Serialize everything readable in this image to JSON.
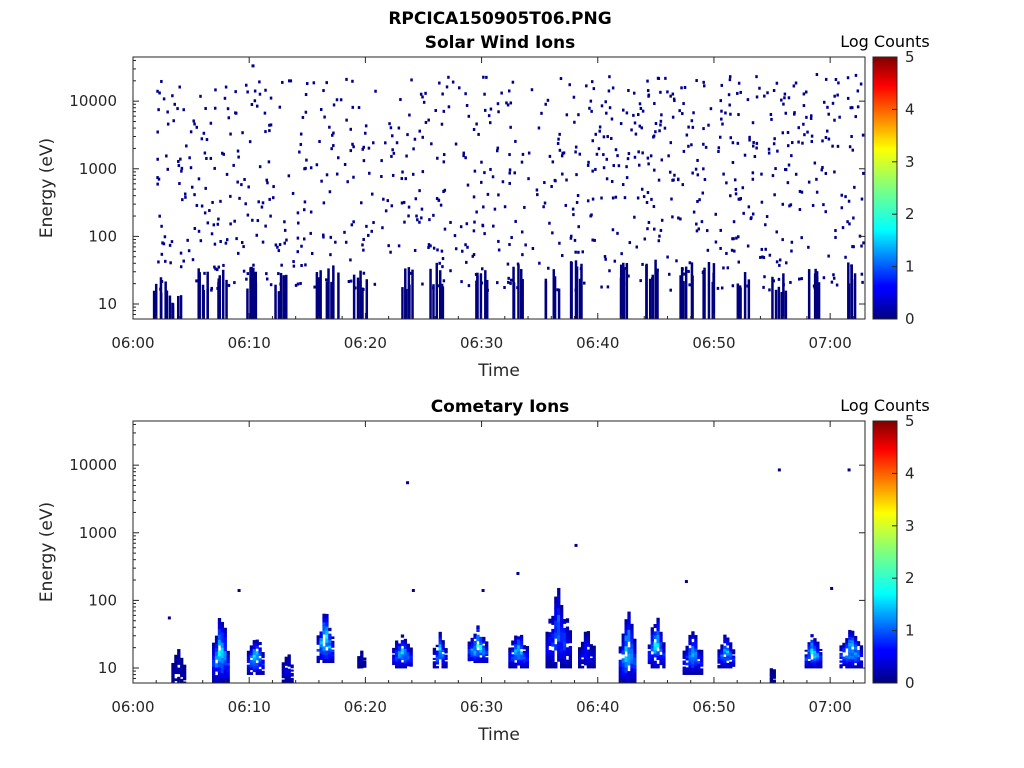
{
  "figure_title": "RPCICA150905T06.PNG",
  "chart_data": [
    {
      "type": "heatmap",
      "title": "Solar Wind Ions",
      "xlabel": "Time",
      "ylabel": "Energy (eV)",
      "x_ticks": [
        "06:00",
        "06:10",
        "06:20",
        "06:30",
        "06:40",
        "06:50",
        "07:00"
      ],
      "x_range_minutes": [
        0,
        63
      ],
      "y_scale": "log",
      "y_ticks": [
        "10",
        "100",
        "1000",
        "10000"
      ],
      "y_range": [
        6,
        45000
      ],
      "colorbar": {
        "title": "Log Counts",
        "ticks": [
          "0",
          "1",
          "2",
          "3",
          "4",
          "5"
        ],
        "range": [
          0,
          5
        ],
        "colormap": "jet"
      },
      "description": "sparse scatter of pixels at log count ~0 (dark blue) across 06:02–07:03 and 10–30000 eV, with denser clusters below 40 eV",
      "low_energy_bursts": [
        {
          "t": 2.3,
          "e_top": 25
        },
        {
          "t": 3.5,
          "e_top": 12
        },
        {
          "t": 6.0,
          "e_top": 30
        },
        {
          "t": 7.5,
          "e_top": 30
        },
        {
          "t": 10.0,
          "e_top": 30
        },
        {
          "t": 12.5,
          "e_top": 28
        },
        {
          "t": 16.3,
          "e_top": 40
        },
        {
          "t": 17.0,
          "e_top": 35
        },
        {
          "t": 19.5,
          "e_top": 30
        },
        {
          "t": 23.5,
          "e_top": 30
        },
        {
          "t": 26.0,
          "e_top": 35
        },
        {
          "t": 30.0,
          "e_top": 40
        },
        {
          "t": 33.0,
          "e_top": 35
        },
        {
          "t": 36.0,
          "e_top": 30
        },
        {
          "t": 38.0,
          "e_top": 40
        },
        {
          "t": 42.0,
          "e_top": 35
        },
        {
          "t": 44.5,
          "e_top": 40
        },
        {
          "t": 47.5,
          "e_top": 35
        },
        {
          "t": 49.5,
          "e_top": 35
        },
        {
          "t": 52.5,
          "e_top": 30
        },
        {
          "t": 55.5,
          "e_top": 25
        },
        {
          "t": 58.5,
          "e_top": 35
        },
        {
          "t": 62.0,
          "e_top": 40
        }
      ]
    },
    {
      "type": "heatmap",
      "title": "Cometary Ions",
      "xlabel": "Time",
      "ylabel": "Energy (eV)",
      "x_ticks": [
        "06:00",
        "06:10",
        "06:20",
        "06:30",
        "06:40",
        "06:50",
        "07:00"
      ],
      "x_range_minutes": [
        0,
        63
      ],
      "y_scale": "log",
      "y_ticks": [
        "10",
        "100",
        "1000",
        "10000"
      ],
      "y_range": [
        6,
        45000
      ],
      "colorbar": {
        "title": "Log Counts",
        "ticks": [
          "0",
          "1",
          "2",
          "3",
          "4",
          "5"
        ],
        "range": [
          0,
          5
        ],
        "colormap": "jet"
      },
      "bursts": [
        {
          "t0": 3.3,
          "t1": 4.5,
          "e_lo": 6,
          "e_hi": 22,
          "peak": 0.3
        },
        {
          "t0": 6.8,
          "t1": 8.2,
          "e_lo": 6,
          "e_hi": 85,
          "peak": 1.8
        },
        {
          "t0": 9.8,
          "t1": 11.2,
          "e_lo": 8,
          "e_hi": 40,
          "peak": 1.8
        },
        {
          "t0": 12.8,
          "t1": 13.8,
          "e_lo": 6,
          "e_hi": 22,
          "peak": 0.6
        },
        {
          "t0": 15.8,
          "t1": 17.3,
          "e_lo": 12,
          "e_hi": 80,
          "peak": 2.0
        },
        {
          "t0": 19.3,
          "t1": 20.0,
          "e_lo": 10,
          "e_hi": 22,
          "peak": 0.3
        },
        {
          "t0": 22.3,
          "t1": 24.0,
          "e_lo": 10,
          "e_hi": 40,
          "peak": 1.6
        },
        {
          "t0": 25.8,
          "t1": 27.0,
          "e_lo": 10,
          "e_hi": 35,
          "peak": 1.5
        },
        {
          "t0": 28.8,
          "t1": 30.5,
          "e_lo": 12,
          "e_hi": 45,
          "peak": 2.0
        },
        {
          "t0": 32.3,
          "t1": 34.0,
          "e_lo": 10,
          "e_hi": 40,
          "peak": 1.6
        },
        {
          "t0": 35.5,
          "t1": 37.8,
          "e_lo": 10,
          "e_hi": 160,
          "peak": 1.2
        },
        {
          "t0": 38.3,
          "t1": 39.8,
          "e_lo": 10,
          "e_hi": 40,
          "peak": 0.8
        },
        {
          "t0": 41.8,
          "t1": 43.3,
          "e_lo": 6,
          "e_hi": 100,
          "peak": 1.8
        },
        {
          "t0": 44.3,
          "t1": 45.8,
          "e_lo": 10,
          "e_hi": 70,
          "peak": 1.8
        },
        {
          "t0": 47.3,
          "t1": 49.0,
          "e_lo": 8,
          "e_hi": 40,
          "peak": 1.4
        },
        {
          "t0": 50.3,
          "t1": 51.8,
          "e_lo": 10,
          "e_hi": 35,
          "peak": 1.6
        },
        {
          "t0": 54.8,
          "t1": 55.3,
          "e_lo": 6,
          "e_hi": 15,
          "peak": 0.2
        },
        {
          "t0": 57.8,
          "t1": 59.3,
          "e_lo": 10,
          "e_hi": 40,
          "peak": 1.8
        },
        {
          "t0": 60.8,
          "t1": 62.8,
          "e_lo": 10,
          "e_hi": 45,
          "peak": 1.8
        }
      ],
      "isolated_points": [
        {
          "t": 23.5,
          "e": 5500
        },
        {
          "t": 38.0,
          "e": 650
        },
        {
          "t": 33.0,
          "e": 250
        },
        {
          "t": 47.5,
          "e": 190
        },
        {
          "t": 55.5,
          "e": 8500
        },
        {
          "t": 61.5,
          "e": 8500
        },
        {
          "t": 60.0,
          "e": 150
        },
        {
          "t": 9.0,
          "e": 140
        },
        {
          "t": 24.0,
          "e": 140
        },
        {
          "t": 30.0,
          "e": 140
        },
        {
          "t": 3.0,
          "e": 55
        }
      ]
    }
  ]
}
